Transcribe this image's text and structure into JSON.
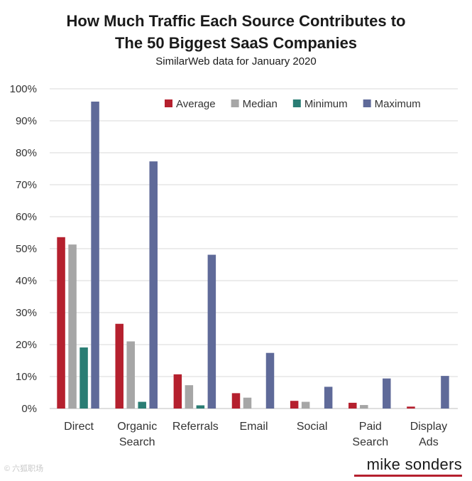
{
  "chart_data": {
    "type": "bar",
    "title_line1": "How Much Traffic Each Source Contributes to",
    "title_line2": "The 50 Biggest SaaS Companies",
    "subtitle": "SimilarWeb data for January 2020",
    "categories": [
      [
        "Direct"
      ],
      [
        "Organic",
        "Search"
      ],
      [
        "Referrals"
      ],
      [
        "Email"
      ],
      [
        "Social"
      ],
      [
        "Paid",
        "Search"
      ],
      [
        "Display",
        "Ads"
      ]
    ],
    "series": [
      {
        "name": "Average",
        "color": "#b5202e",
        "values": [
          53.6,
          26.5,
          10.7,
          4.8,
          2.4,
          1.8,
          0.6
        ]
      },
      {
        "name": "Median",
        "color": "#a6a6a6",
        "values": [
          51.3,
          21.0,
          7.3,
          3.4,
          2.1,
          1.1,
          0.0
        ]
      },
      {
        "name": "Minimum",
        "color": "#2a7d74",
        "values": [
          19.1,
          2.1,
          1.0,
          0.0,
          0.0,
          0.0,
          0.0
        ]
      },
      {
        "name": "Maximum",
        "color": "#5f6a99",
        "values": [
          96.0,
          77.3,
          48.1,
          17.4,
          6.8,
          9.4,
          10.2
        ]
      }
    ],
    "yticks": [
      "0%",
      "10%",
      "20%",
      "30%",
      "40%",
      "50%",
      "60%",
      "70%",
      "80%",
      "90%",
      "100%"
    ],
    "ylim": [
      0,
      100
    ],
    "grid": true,
    "legend": "top-right"
  },
  "brand": "mike sonders",
  "watermark": "© 六狐职场"
}
